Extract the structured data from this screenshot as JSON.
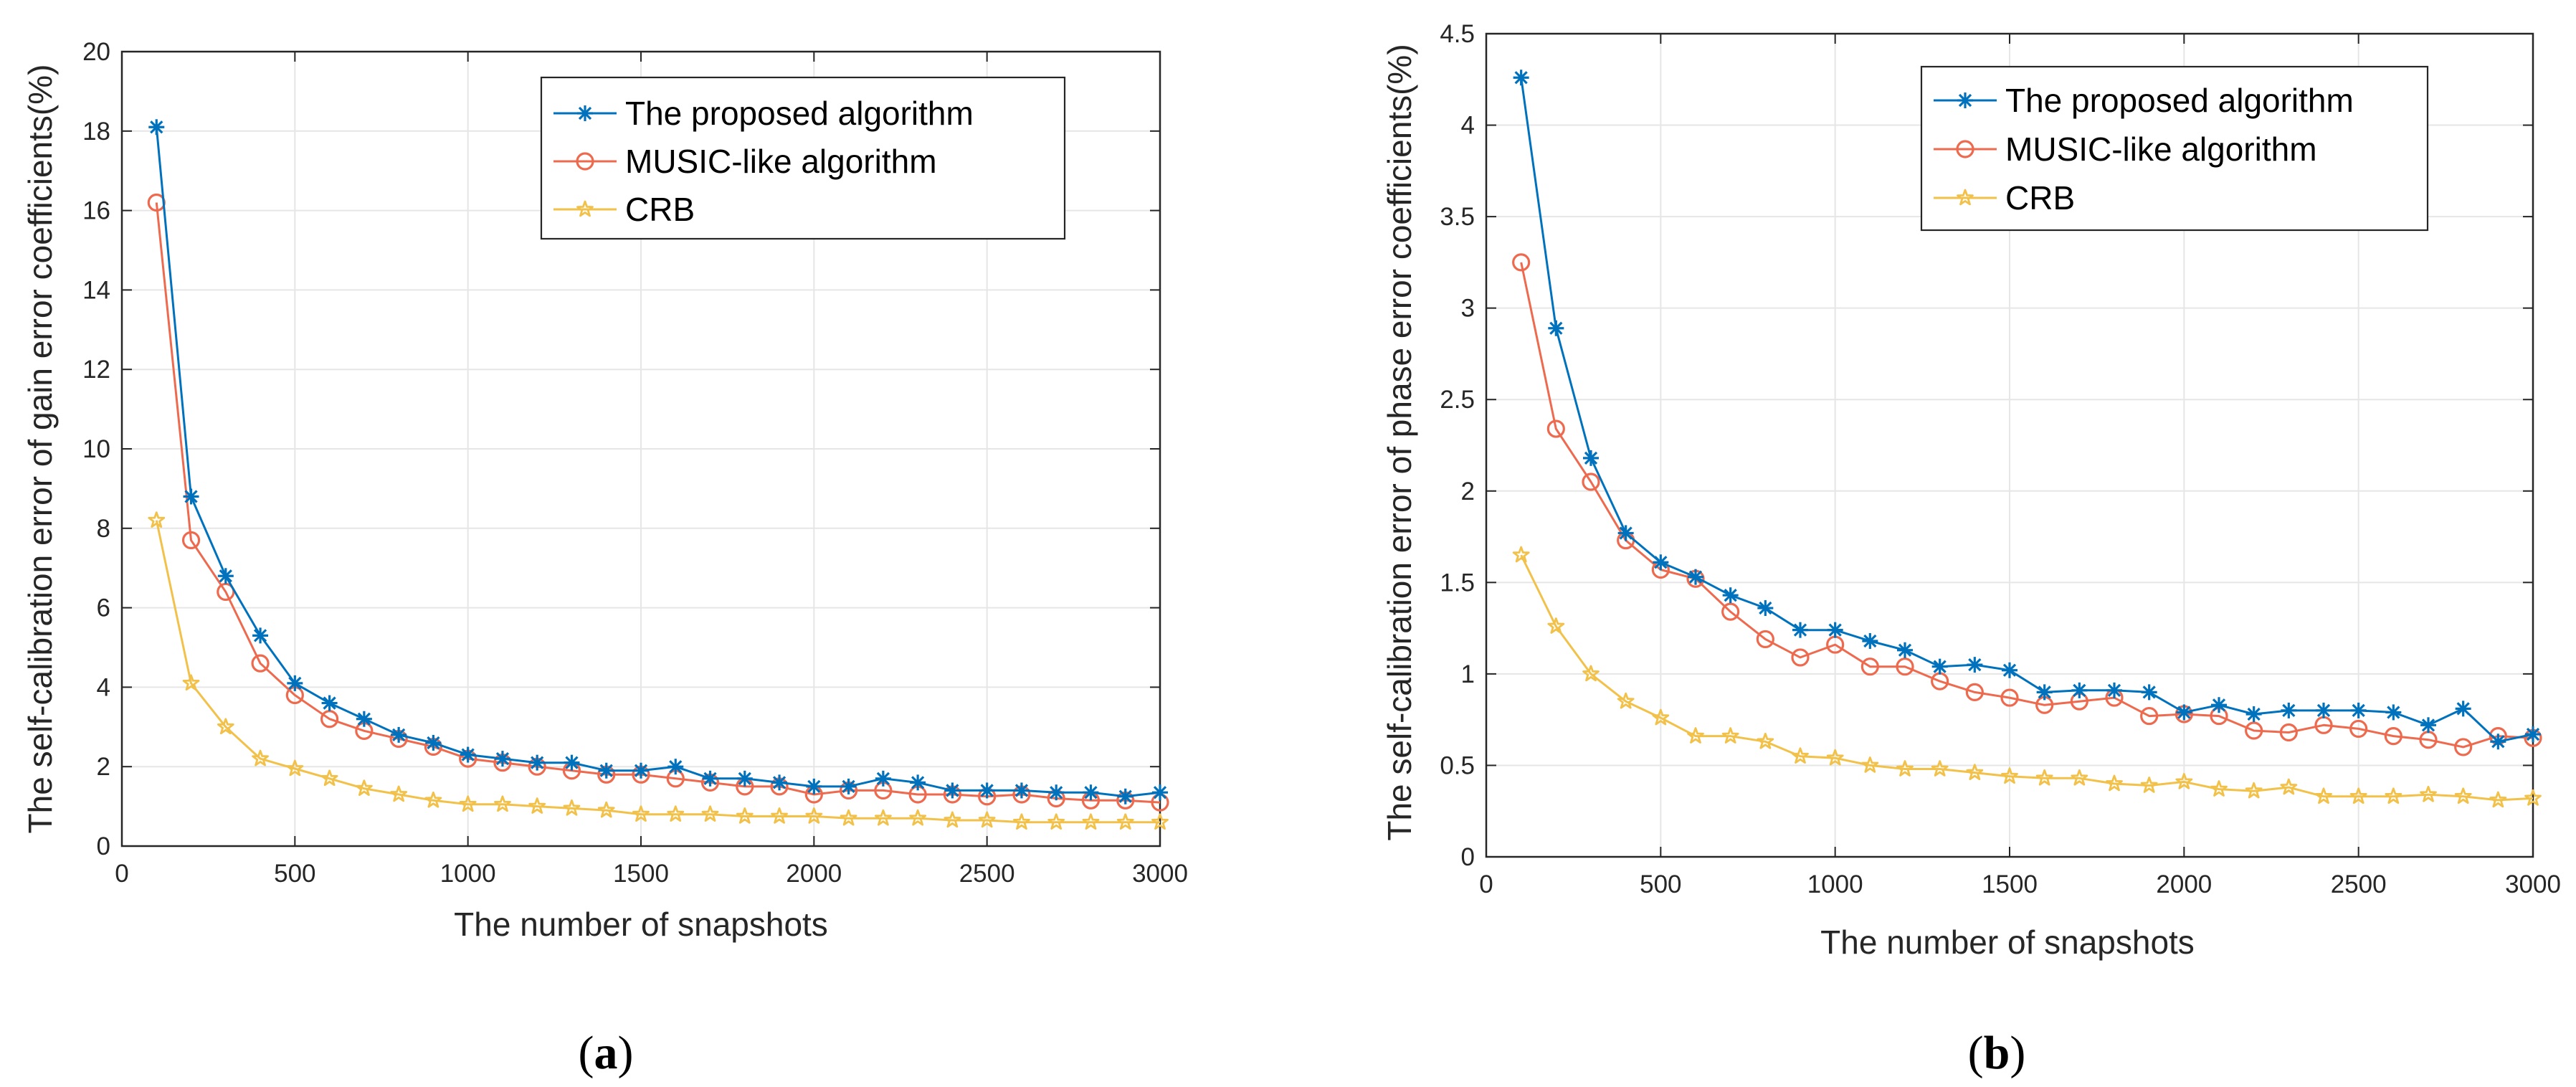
{
  "figure": {
    "colors": {
      "proposed": "#0072BD",
      "music": "#EE6A4F",
      "crb": "#F2C14A",
      "grid": "#e6e6e6",
      "axis": "#262626"
    },
    "markers": {
      "proposed": "asterisk-icon",
      "music": "circle-icon",
      "crb": "pentagram-icon"
    }
  },
  "chart_data": [
    {
      "type": "line",
      "panel": "a",
      "caption_open": "(",
      "caption_letter": "a",
      "caption_close": ")",
      "title": "",
      "xlabel": "The number of snapshots",
      "ylabel": "The self-calibration error of gain error coefficients(%)",
      "xlim": [
        0,
        3000
      ],
      "ylim": [
        0,
        20
      ],
      "xticks": [
        0,
        500,
        1000,
        1500,
        2000,
        2500,
        3000
      ],
      "yticks": [
        0,
        2,
        4,
        6,
        8,
        10,
        12,
        14,
        16,
        18,
        20
      ],
      "grid": true,
      "legend_position": "top-right",
      "x": [
        100,
        200,
        300,
        400,
        500,
        600,
        700,
        800,
        900,
        1000,
        1100,
        1200,
        1300,
        1400,
        1500,
        1600,
        1700,
        1800,
        1900,
        2000,
        2100,
        2200,
        2300,
        2400,
        2500,
        2600,
        2700,
        2800,
        2900,
        3000
      ],
      "series": [
        {
          "name": "The proposed algorithm",
          "key": "proposed",
          "values": [
            18.1,
            8.8,
            6.8,
            5.3,
            4.1,
            3.6,
            3.2,
            2.8,
            2.6,
            2.3,
            2.2,
            2.1,
            2.1,
            1.9,
            1.9,
            2.0,
            1.7,
            1.7,
            1.6,
            1.5,
            1.5,
            1.7,
            1.6,
            1.4,
            1.4,
            1.4,
            1.35,
            1.35,
            1.25,
            1.35
          ]
        },
        {
          "name": "MUSIC-like algorithm",
          "key": "music",
          "values": [
            16.2,
            7.7,
            6.4,
            4.6,
            3.8,
            3.2,
            2.9,
            2.7,
            2.5,
            2.2,
            2.1,
            2.0,
            1.9,
            1.8,
            1.8,
            1.7,
            1.6,
            1.5,
            1.5,
            1.3,
            1.4,
            1.4,
            1.3,
            1.3,
            1.25,
            1.3,
            1.2,
            1.15,
            1.15,
            1.1
          ]
        },
        {
          "name": "CRB",
          "key": "crb",
          "values": [
            8.2,
            4.1,
            3.0,
            2.2,
            1.95,
            1.7,
            1.45,
            1.3,
            1.15,
            1.05,
            1.05,
            1.0,
            0.95,
            0.9,
            0.8,
            0.8,
            0.8,
            0.75,
            0.75,
            0.75,
            0.7,
            0.7,
            0.7,
            0.65,
            0.65,
            0.6,
            0.6,
            0.6,
            0.6,
            0.6
          ]
        }
      ]
    },
    {
      "type": "line",
      "panel": "b",
      "caption_open": "(",
      "caption_letter": "b",
      "caption_close": ")",
      "title": "",
      "xlabel": "The number of snapshots",
      "ylabel": "The self-calibration error of phase error coefficients(%)",
      "xlim": [
        0,
        3000
      ],
      "ylim": [
        0,
        4.5
      ],
      "xticks": [
        0,
        500,
        1000,
        1500,
        2000,
        2500,
        3000
      ],
      "yticks": [
        0,
        0.5,
        1,
        1.5,
        2,
        2.5,
        3,
        3.5,
        4,
        4.5
      ],
      "grid": true,
      "legend_position": "top-right",
      "x": [
        100,
        200,
        300,
        400,
        500,
        600,
        700,
        800,
        900,
        1000,
        1100,
        1200,
        1300,
        1400,
        1500,
        1600,
        1700,
        1800,
        1900,
        2000,
        2100,
        2200,
        2300,
        2400,
        2500,
        2600,
        2700,
        2800,
        2900,
        3000
      ],
      "series": [
        {
          "name": "The proposed algorithm",
          "key": "proposed",
          "values": [
            4.26,
            2.89,
            2.18,
            1.77,
            1.61,
            1.53,
            1.43,
            1.36,
            1.24,
            1.24,
            1.18,
            1.13,
            1.04,
            1.05,
            1.02,
            0.9,
            0.91,
            0.91,
            0.9,
            0.79,
            0.83,
            0.78,
            0.8,
            0.8,
            0.8,
            0.79,
            0.72,
            0.81,
            0.63,
            0.67
          ]
        },
        {
          "name": "MUSIC-like algorithm",
          "key": "music",
          "values": [
            3.25,
            2.34,
            2.05,
            1.73,
            1.57,
            1.52,
            1.34,
            1.19,
            1.09,
            1.16,
            1.04,
            1.04,
            0.96,
            0.9,
            0.87,
            0.83,
            0.85,
            0.87,
            0.77,
            0.78,
            0.77,
            0.69,
            0.68,
            0.72,
            0.7,
            0.66,
            0.64,
            0.6,
            0.66,
            0.65
          ]
        },
        {
          "name": "CRB",
          "key": "crb",
          "values": [
            1.65,
            1.26,
            1.0,
            0.85,
            0.76,
            0.66,
            0.66,
            0.63,
            0.55,
            0.54,
            0.5,
            0.48,
            0.48,
            0.46,
            0.44,
            0.43,
            0.43,
            0.4,
            0.39,
            0.41,
            0.37,
            0.36,
            0.38,
            0.33,
            0.33,
            0.33,
            0.34,
            0.33,
            0.31,
            0.32
          ]
        }
      ]
    }
  ]
}
